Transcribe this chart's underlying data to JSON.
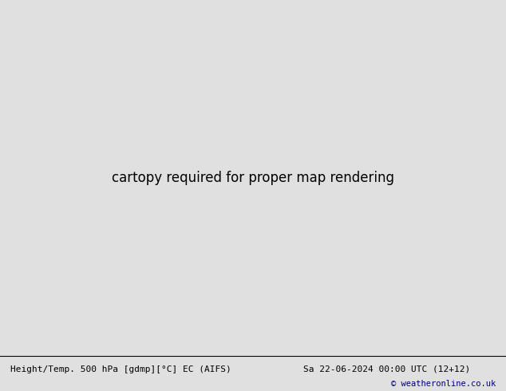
{
  "title_left": "Height/Temp. 500 hPa [gdmp][°C] EC (AIFS)",
  "title_right": "Sa 22-06-2024 00:00 UTC (12+12)",
  "copyright": "© weatheronline.co.uk",
  "bg_color": "#e0e0e0",
  "ocean_color": "#e0e0e0",
  "land_color": "#c8c8c8",
  "green_color": "#b8e890",
  "figsize": [
    6.34,
    4.9
  ],
  "dpi": 100,
  "bottom_bar_color": "#ffffff",
  "title_fontsize": 8.0,
  "copyright_color": "#000080",
  "copyright_fontsize": 7.5,
  "black_lw": 1.8,
  "black_lw_thick": 2.2,
  "temp_lw": 1.2,
  "orange_color": "#FF8C00",
  "red_color": "#CC0000",
  "green_temp_color": "#5AAA20",
  "teal_color": "#00AAAA"
}
